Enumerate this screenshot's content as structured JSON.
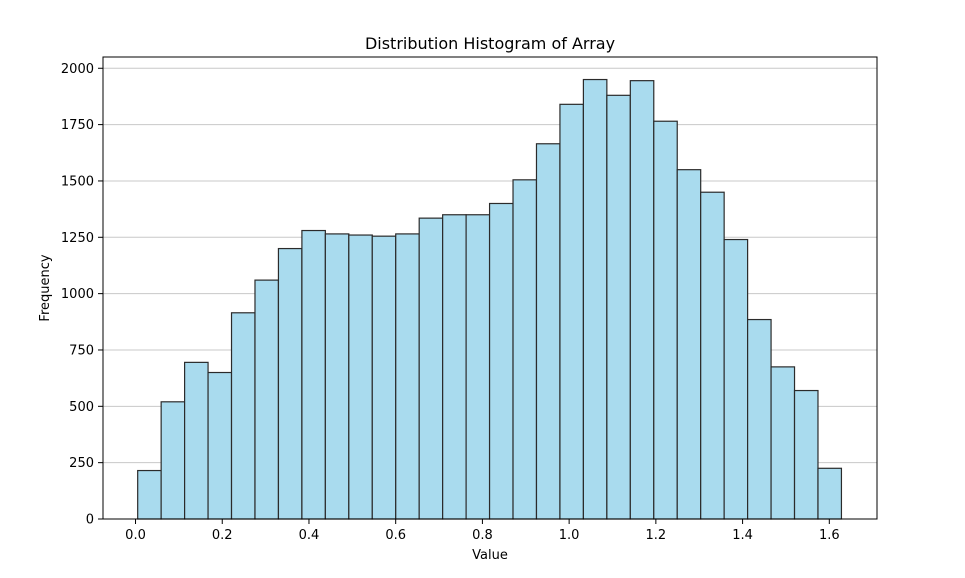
{
  "chart_data": {
    "type": "bar",
    "title": "Distribution Histogram of Array",
    "xlabel": "Value",
    "ylabel": "Frequency",
    "xlim": [
      -0.075,
      1.71
    ],
    "ylim": [
      0,
      2050
    ],
    "x_ticks": [
      0.0,
      0.2,
      0.4,
      0.6,
      0.8,
      1.0,
      1.2,
      1.4,
      1.6
    ],
    "x_tick_labels": [
      "0.0",
      "0.2",
      "0.4",
      "0.6",
      "0.8",
      "1.0",
      "1.2",
      "1.4",
      "1.6"
    ],
    "y_ticks": [
      0,
      250,
      500,
      750,
      1000,
      1250,
      1500,
      1750,
      2000
    ],
    "y_tick_labels": [
      "0",
      "250",
      "500",
      "750",
      "1000",
      "1250",
      "1500",
      "1750",
      "2000"
    ],
    "grid": "y-axis only",
    "bin_edges": [
      0.005,
      0.0591,
      0.1132,
      0.1673,
      0.2214,
      0.2755,
      0.3296,
      0.3837,
      0.4378,
      0.4919,
      0.546,
      0.6001,
      0.6542,
      0.7083,
      0.7624,
      0.8165,
      0.8706,
      0.9247,
      0.9788,
      1.0329,
      1.087,
      1.1411,
      1.1952,
      1.2493,
      1.3034,
      1.3575,
      1.4116,
      1.4657,
      1.5198,
      1.5739,
      1.628
    ],
    "values": [
      215,
      520,
      695,
      650,
      915,
      1060,
      1200,
      1280,
      1265,
      1260,
      1255,
      1265,
      1335,
      1350,
      1350,
      1400,
      1505,
      1665,
      1840,
      1950,
      1880,
      1945,
      1765,
      1550,
      1450,
      1240,
      885,
      675,
      570,
      225
    ],
    "colors": {
      "bar_fill": "#a9dbee",
      "bar_edge": "#2b2b2b",
      "grid": "#c8c8c8"
    }
  }
}
